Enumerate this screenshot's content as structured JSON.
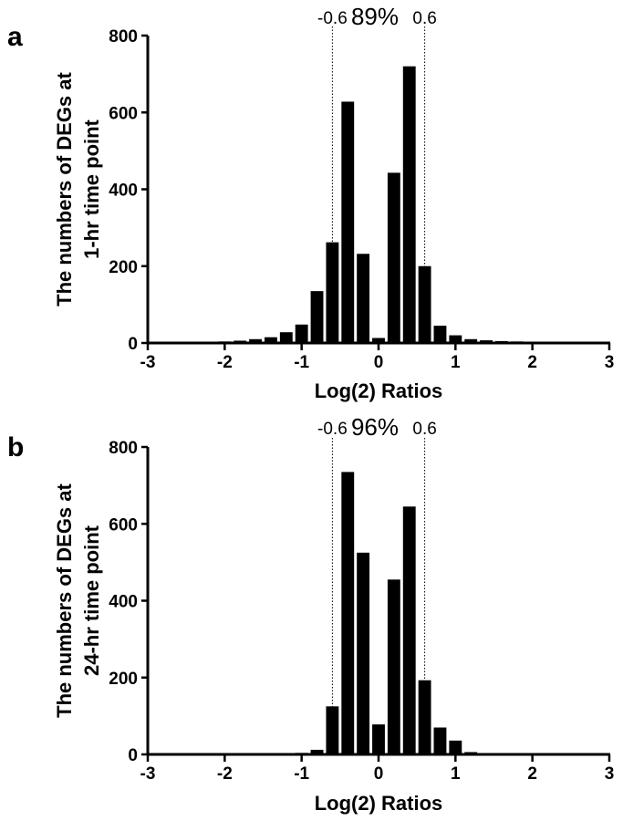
{
  "chart_data": [
    {
      "type": "bar",
      "panel_label": "a",
      "xlabel": "Log(2) Ratios",
      "ylabel_lines": [
        "The numbers of DEGs at",
        "1-hr time point"
      ],
      "xlim": [
        -3,
        3
      ],
      "ylim": [
        0,
        800
      ],
      "x_ticks": [
        "-3",
        "-2",
        "-1",
        "0",
        "1",
        "2",
        "3"
      ],
      "y_ticks": [
        "0",
        "200",
        "400",
        "600",
        "800"
      ],
      "bin_width": 0.2,
      "x": [
        -2.6,
        -2.4,
        -2.2,
        -2.0,
        -1.8,
        -1.6,
        -1.4,
        -1.2,
        -1.0,
        -0.8,
        -0.6,
        -0.4,
        -0.2,
        0.0,
        0.2,
        0.4,
        0.6,
        0.8,
        1.0,
        1.2,
        1.4,
        1.6,
        1.8,
        2.0,
        2.2,
        2.4,
        2.6
      ],
      "values": [
        1,
        1,
        2,
        4,
        6,
        10,
        15,
        28,
        48,
        135,
        262,
        628,
        232,
        13,
        443,
        720,
        200,
        45,
        20,
        10,
        7,
        5,
        4,
        3,
        2,
        1,
        1
      ],
      "cutoff_lines": [
        -0.6,
        0.6
      ],
      "cutoff_labels": [
        "-0.6",
        "0.6"
      ],
      "percentage": "89%"
    },
    {
      "type": "bar",
      "panel_label": "b",
      "xlabel": "Log(2) Ratios",
      "ylabel_lines": [
        "The numbers of DEGs at",
        "24-hr time point"
      ],
      "xlim": [
        -3,
        3
      ],
      "ylim": [
        0,
        800
      ],
      "x_ticks": [
        "-3",
        "-2",
        "-1",
        "0",
        "1",
        "2",
        "3"
      ],
      "y_ticks": [
        "0",
        "200",
        "400",
        "600",
        "800"
      ],
      "bin_width": 0.2,
      "x": [
        -1.2,
        -1.0,
        -0.8,
        -0.6,
        -0.4,
        -0.2,
        0.0,
        0.2,
        0.4,
        0.6,
        0.8,
        1.0,
        1.2,
        1.4
      ],
      "values": [
        2,
        4,
        12,
        125,
        735,
        525,
        78,
        455,
        645,
        193,
        70,
        36,
        6,
        2
      ],
      "cutoff_lines": [
        -0.6,
        0.6
      ],
      "cutoff_labels": [
        "-0.6",
        "0.6"
      ],
      "percentage": "96%"
    }
  ]
}
